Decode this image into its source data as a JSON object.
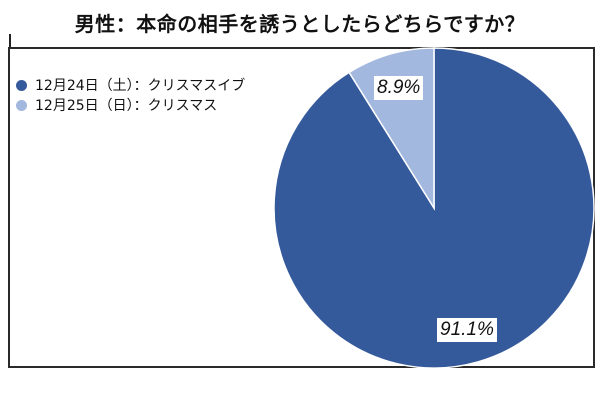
{
  "chart_data": {
    "type": "pie",
    "title": "男性：本命の相手を誘うとしたらどちらですか？",
    "categories": [
      "12月24日（土）：クリスマスイブ",
      "12月25日（日）：クリスマス"
    ],
    "values": [
      91.1,
      8.9
    ],
    "unit": "%",
    "colors": [
      "#355a9c",
      "#a3b8df"
    ],
    "data_labels": [
      "91.1%",
      "8.9%"
    ],
    "legend_position": "top-left"
  },
  "title": "男性：本命の相手を誘うとしたらどちらですか？",
  "legend": [
    {
      "label": "12月24日（土）：クリスマスイブ",
      "color": "#355a9c"
    },
    {
      "label": "12月25日（日）：クリスマス",
      "color": "#a3b8df"
    }
  ],
  "labels": {
    "slice0": "91.1%",
    "slice1": "8.9%"
  }
}
